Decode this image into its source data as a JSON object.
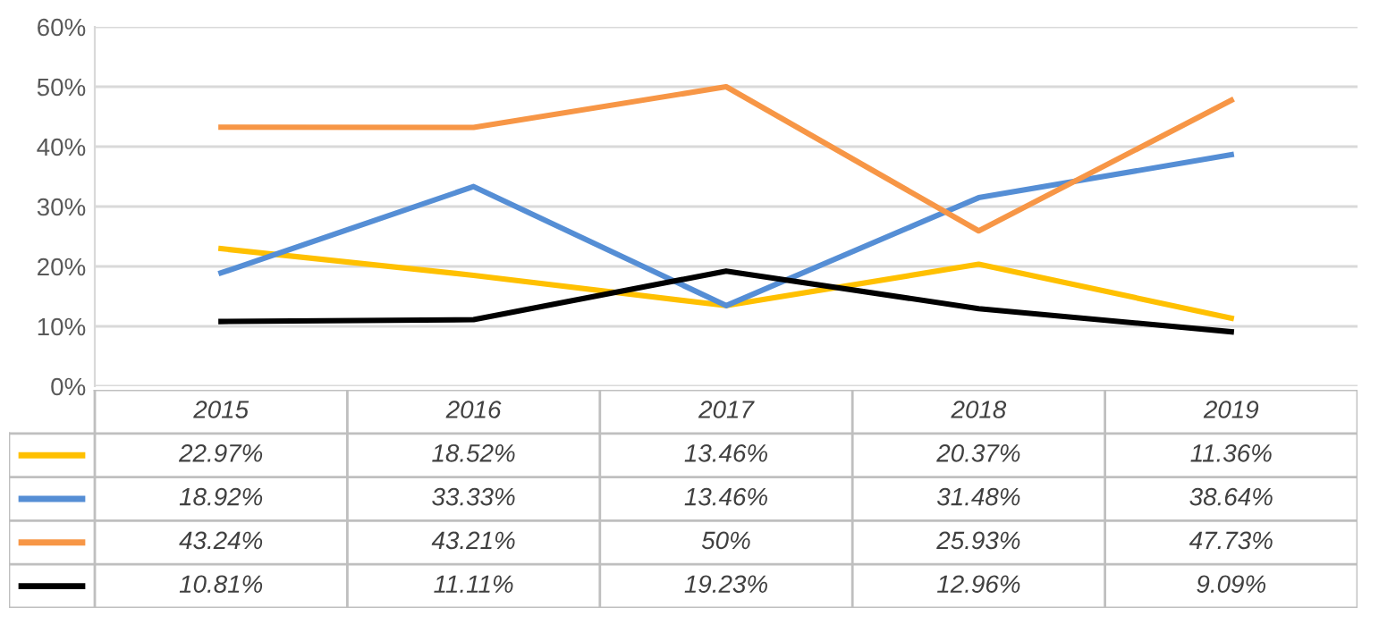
{
  "chart_data": {
    "type": "line",
    "categories": [
      "2015",
      "2016",
      "2017",
      "2018",
      "2019"
    ],
    "ylim": [
      0,
      60
    ],
    "yticks": [
      {
        "value": 0,
        "label": "0%"
      },
      {
        "value": 10,
        "label": "10%"
      },
      {
        "value": 20,
        "label": "20%"
      },
      {
        "value": 30,
        "label": "30%"
      },
      {
        "value": 40,
        "label": "40%"
      },
      {
        "value": 50,
        "label": "50%"
      },
      {
        "value": 60,
        "label": "60%"
      }
    ],
    "grid": "y",
    "marker": "none",
    "line_style": "solid",
    "series": [
      {
        "color": "#ffc000",
        "values": [
          22.97,
          18.52,
          13.46,
          20.37,
          11.36
        ],
        "value_labels": [
          "22.97%",
          "18.52%",
          "13.46%",
          "20.37%",
          "11.36%"
        ]
      },
      {
        "color": "#558ed5",
        "values": [
          18.92,
          33.33,
          13.46,
          31.48,
          38.64
        ],
        "value_labels": [
          "18.92%",
          "33.33%",
          "13.46%",
          "31.48%",
          "38.64%"
        ]
      },
      {
        "color": "#f79646",
        "values": [
          43.24,
          43.21,
          50,
          25.93,
          47.73
        ],
        "value_labels": [
          "43.24%",
          "43.21%",
          "50%",
          "25.93%",
          "47.73%"
        ]
      },
      {
        "color": "#000000",
        "values": [
          10.81,
          11.11,
          19.23,
          12.96,
          9.09
        ],
        "value_labels": [
          "10.81%",
          "11.11%",
          "19.23%",
          "12.96%",
          "9.09%"
        ]
      }
    ]
  }
}
